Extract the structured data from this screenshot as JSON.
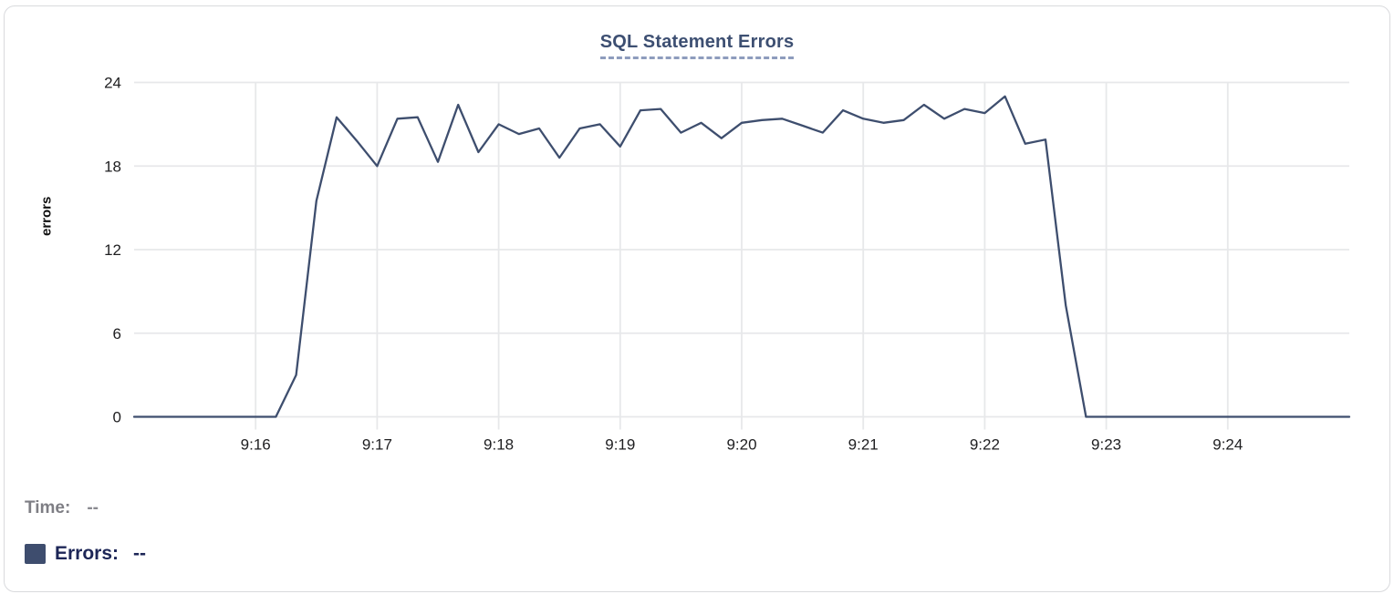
{
  "chart_data": {
    "type": "line",
    "title": "SQL Statement Errors",
    "xlabel": "",
    "ylabel": "errors",
    "legend_position": "none",
    "grid": true,
    "ylim": [
      0,
      24
    ],
    "yticks": [
      0,
      6,
      12,
      18,
      24
    ],
    "xlim": [
      "9:15:00",
      "9:25:00"
    ],
    "xticks": [
      "9:16",
      "9:17",
      "9:18",
      "9:19",
      "9:20",
      "9:21",
      "9:22",
      "9:23",
      "9:24"
    ],
    "x": [
      "9:15:00",
      "9:15:10",
      "9:15:20",
      "9:15:30",
      "9:15:40",
      "9:15:50",
      "9:16:00",
      "9:16:10",
      "9:16:20",
      "9:16:30",
      "9:16:40",
      "9:16:50",
      "9:17:00",
      "9:17:10",
      "9:17:20",
      "9:17:30",
      "9:17:40",
      "9:17:50",
      "9:18:00",
      "9:18:10",
      "9:18:20",
      "9:18:30",
      "9:18:40",
      "9:18:50",
      "9:19:00",
      "9:19:10",
      "9:19:20",
      "9:19:30",
      "9:19:40",
      "9:19:50",
      "9:20:00",
      "9:20:10",
      "9:20:20",
      "9:20:30",
      "9:20:40",
      "9:20:50",
      "9:21:00",
      "9:21:10",
      "9:21:20",
      "9:21:30",
      "9:21:40",
      "9:21:50",
      "9:22:00",
      "9:22:10",
      "9:22:20",
      "9:22:30",
      "9:22:40",
      "9:22:50",
      "9:23:00",
      "9:23:10",
      "9:23:20",
      "9:23:30",
      "9:23:40",
      "9:23:50",
      "9:24:00",
      "9:24:10",
      "9:24:20",
      "9:24:30",
      "9:24:40",
      "9:24:50",
      "9:25:00"
    ],
    "series": [
      {
        "name": "Errors",
        "values": [
          0,
          0,
          0,
          0,
          0,
          0,
          0,
          0,
          3,
          15.5,
          21.5,
          19.8,
          18,
          21.4,
          21.5,
          18.3,
          22.4,
          19,
          21,
          20.3,
          20.7,
          18.6,
          20.7,
          21,
          19.4,
          22,
          22.1,
          20.4,
          21.1,
          20,
          21.1,
          21.3,
          21.4,
          20.9,
          20.4,
          22,
          21.4,
          21.1,
          21.3,
          22.4,
          21.4,
          22.1,
          21.8,
          23,
          19.6,
          19.9,
          8,
          0,
          0,
          0,
          0,
          0,
          0,
          0,
          0,
          0,
          0,
          0,
          0,
          0,
          0
        ]
      }
    ]
  },
  "readout": {
    "time_label": "Time:",
    "time_value": "--",
    "errors_label": "Errors:",
    "errors_value": "--"
  },
  "colors": {
    "line": "#3e4e6e",
    "title": "#3d4f72",
    "title_underline": "#8e9cbd",
    "gridline": "#e7e8ea",
    "tick_text": "#1e1e20",
    "legend_swatch": "#3e4d6e",
    "errors_text": "#1d2657",
    "time_text": "#7e7e84"
  }
}
